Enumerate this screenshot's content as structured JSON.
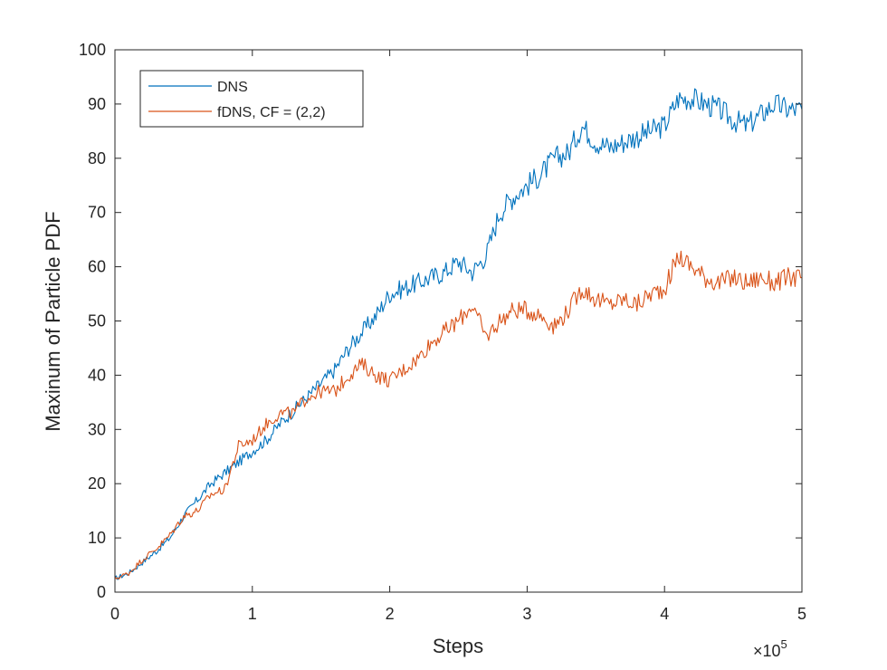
{
  "chart_data": {
    "type": "line",
    "xlabel": "Steps",
    "ylabel": "Maxinum of Particle PDF",
    "x_multiplier_label": "×10",
    "x_multiplier_exponent": "5",
    "xlim": [
      0,
      5
    ],
    "ylim": [
      0,
      100
    ],
    "x_ticks": [
      "0",
      "1",
      "2",
      "3",
      "4",
      "5"
    ],
    "y_ticks": [
      "0",
      "10",
      "20",
      "30",
      "40",
      "50",
      "60",
      "70",
      "80",
      "90",
      "100"
    ],
    "legend_placement": "top-left",
    "grid": false,
    "x_units": "steps ×10^5",
    "series": [
      {
        "name": "DNS",
        "color": "#0072BD",
        "x": [
          0,
          0.1,
          0.2,
          0.3,
          0.4,
          0.5,
          0.6,
          0.7,
          0.8,
          0.9,
          1.0,
          1.1,
          1.2,
          1.3,
          1.4,
          1.5,
          1.6,
          1.7,
          1.8,
          1.9,
          2.0,
          2.1,
          2.2,
          2.3,
          2.4,
          2.5,
          2.6,
          2.7,
          2.8,
          2.9,
          3.0,
          3.1,
          3.2,
          3.3,
          3.4,
          3.5,
          3.6,
          3.7,
          3.8,
          3.9,
          4.0,
          4.1,
          4.2,
          4.3,
          4.4,
          4.5,
          4.6,
          4.7,
          4.8,
          4.9,
          5.0
        ],
        "values": [
          2.5,
          3.5,
          5.5,
          7.5,
          10,
          14,
          17,
          20,
          22,
          24,
          26,
          28,
          31,
          33.5,
          36,
          38.5,
          41,
          45,
          48,
          51,
          55,
          56,
          57,
          58,
          59,
          61,
          59,
          62,
          70,
          73,
          75,
          77,
          80,
          81,
          86,
          83,
          82,
          83,
          84,
          85,
          86,
          91,
          91,
          90,
          89,
          87,
          86,
          88,
          90,
          89,
          89
        ]
      },
      {
        "name": "fDNS, CF = (2,2)",
        "color": "#D95319",
        "x": [
          0,
          0.1,
          0.2,
          0.3,
          0.4,
          0.5,
          0.6,
          0.7,
          0.8,
          0.9,
          1.0,
          1.1,
          1.2,
          1.3,
          1.4,
          1.5,
          1.6,
          1.7,
          1.8,
          1.9,
          2.0,
          2.1,
          2.2,
          2.3,
          2.4,
          2.5,
          2.6,
          2.7,
          2.8,
          2.9,
          3.0,
          3.1,
          3.2,
          3.3,
          3.4,
          3.5,
          3.6,
          3.7,
          3.8,
          3.9,
          4.0,
          4.1,
          4.2,
          4.3,
          4.4,
          4.5,
          4.6,
          4.7,
          4.8,
          4.9,
          5.0
        ],
        "values": [
          2.5,
          3.5,
          6,
          8,
          10.5,
          14,
          15,
          18,
          19,
          27,
          28,
          31,
          33,
          33,
          36,
          37,
          37,
          40,
          42,
          40,
          39,
          41,
          43,
          46,
          48,
          50,
          53,
          47,
          50,
          52,
          52,
          51,
          49,
          52,
          56,
          54,
          53,
          54,
          53,
          55,
          56,
          62,
          60,
          58,
          57,
          58,
          57,
          58,
          57,
          58,
          58
        ]
      }
    ]
  }
}
